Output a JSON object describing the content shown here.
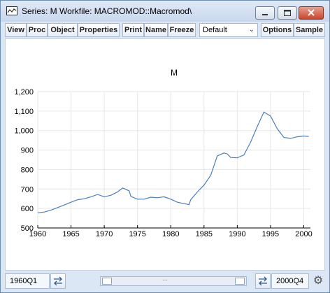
{
  "window": {
    "title": "Series: M   Workfile: MACROMOD::Macromod\\",
    "icon": "graph-icon"
  },
  "toolbar": {
    "buttons": [
      "View",
      "Proc",
      "Object",
      "Properties",
      "Print",
      "Name",
      "Freeze",
      "Options",
      "Sample"
    ],
    "dropdown_value": "Default"
  },
  "status": {
    "sample_start": "1960Q1",
    "sample_end": "2000Q4"
  },
  "colors": {
    "line": "#4a7ebb",
    "grid": "#e6e6e6"
  },
  "chart_data": {
    "type": "line",
    "title": "M",
    "xlabel": "",
    "ylabel": "",
    "ylim": [
      500,
      1200
    ],
    "xlim": [
      1960,
      2001
    ],
    "grid": true,
    "xticks": [
      "1960",
      "1965",
      "1970",
      "1975",
      "1980",
      "1985",
      "1990",
      "1995",
      "2000"
    ],
    "yticks": [
      "500",
      "600",
      "700",
      "800",
      "900",
      "1,000",
      "1,100",
      "1,200"
    ],
    "series": [
      {
        "x": [
          1960,
          1961,
          1962,
          1963,
          1964,
          1965,
          1966,
          1967,
          1968,
          1969,
          1970,
          1971,
          1972,
          1972.75,
          1973,
          1973.75,
          1974,
          1975,
          1976,
          1977,
          1978,
          1979,
          1980,
          1981,
          1982,
          1982.75,
          1983,
          1984,
          1985,
          1986,
          1987,
          1988,
          1988.5,
          1989,
          1990,
          1991,
          1992,
          1993,
          1994,
          1995,
          1996,
          1997,
          1998,
          1999,
          2000,
          2000.75
        ],
        "y": [
          578,
          582,
          592,
          605,
          618,
          632,
          645,
          650,
          660,
          672,
          660,
          668,
          685,
          705,
          702,
          690,
          662,
          648,
          648,
          658,
          655,
          660,
          648,
          632,
          625,
          620,
          645,
          685,
          720,
          770,
          870,
          885,
          880,
          862,
          860,
          875,
          940,
          1020,
          1095,
          1075,
          1010,
          965,
          960,
          968,
          972,
          970
        ]
      }
    ]
  }
}
